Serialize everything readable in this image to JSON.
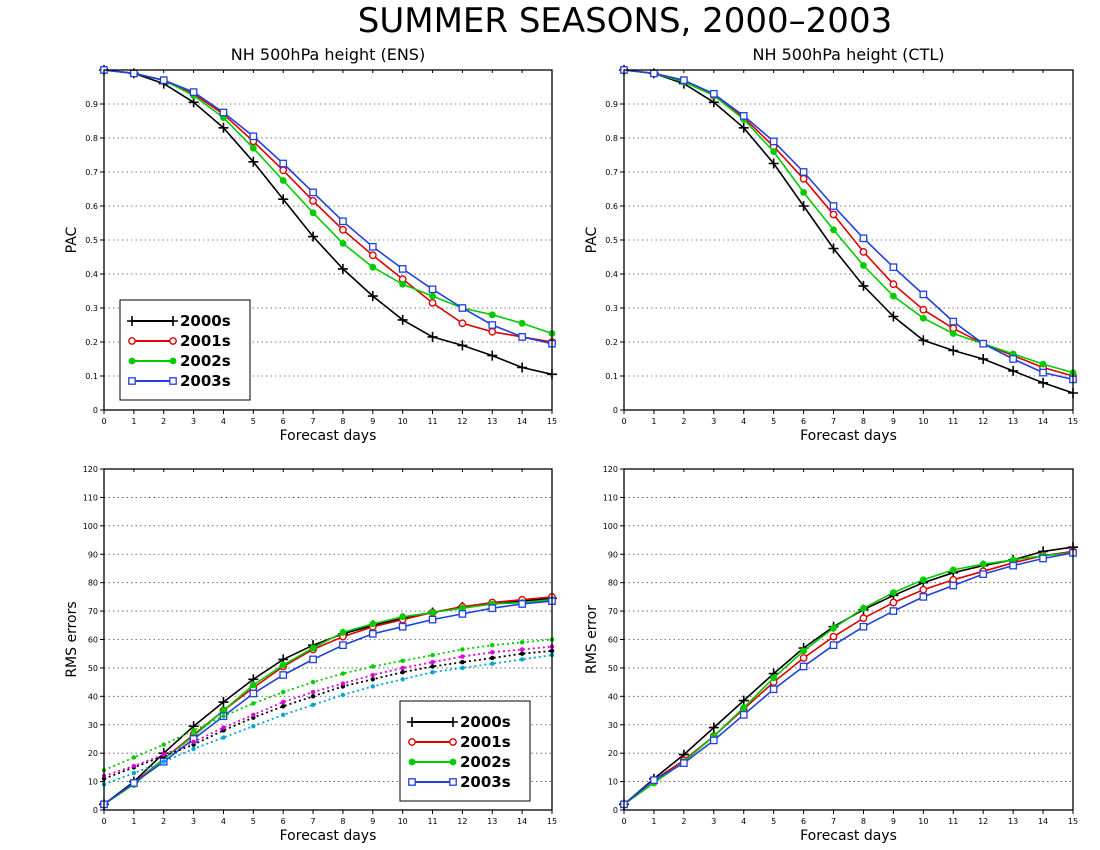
{
  "figure": {
    "title": "SUMMER SEASONS, 2000–2003"
  },
  "colors": {
    "2000s": "#000000",
    "2001s": "#e00000",
    "2002s": "#00cc00",
    "2003s": "#2040e0",
    "2000s_dotted": "#000000",
    "2001s_dotted": "#e000e0",
    "2002s_dotted": "#00cc00",
    "2003s_dotted": "#00a8d0"
  },
  "chart_data": [
    {
      "id": "pac-ens",
      "type": "line",
      "title": "NH 500hPa height (ENS)",
      "xlabel": "Forecast days",
      "ylabel": "PAC",
      "x": [
        0,
        1,
        2,
        3,
        4,
        5,
        6,
        7,
        8,
        9,
        10,
        11,
        12,
        13,
        14,
        15
      ],
      "xlim": [
        0,
        15
      ],
      "ylim": [
        0,
        1
      ],
      "yticks": [
        0,
        0.1,
        0.2,
        0.3,
        0.4,
        0.5,
        0.6,
        0.7,
        0.8,
        0.9
      ],
      "ytick_labels": [
        "0",
        "0.1",
        "0.2",
        "0.3",
        "0.4",
        "0.5",
        "0.6",
        "0.7",
        "0.8",
        "0.9"
      ],
      "grid": "horizontal dotted",
      "legend": "lower-left",
      "series": [
        {
          "name": "2000s",
          "marker": "plus",
          "values": [
            1.0,
            0.99,
            0.96,
            0.905,
            0.83,
            0.73,
            0.62,
            0.51,
            0.415,
            0.335,
            0.265,
            0.215,
            0.19,
            0.16,
            0.125,
            0.105
          ]
        },
        {
          "name": "2001s",
          "marker": "circle",
          "values": [
            1.0,
            0.99,
            0.97,
            0.93,
            0.87,
            0.79,
            0.705,
            0.615,
            0.53,
            0.455,
            0.385,
            0.315,
            0.255,
            0.23,
            0.215,
            0.2
          ]
        },
        {
          "name": "2002s",
          "marker": "dot",
          "values": [
            1.0,
            0.99,
            0.97,
            0.925,
            0.86,
            0.77,
            0.675,
            0.58,
            0.49,
            0.42,
            0.37,
            0.335,
            0.3,
            0.28,
            0.255,
            0.225
          ]
        },
        {
          "name": "2003s",
          "marker": "square",
          "values": [
            1.0,
            0.99,
            0.97,
            0.935,
            0.875,
            0.805,
            0.725,
            0.64,
            0.555,
            0.48,
            0.415,
            0.355,
            0.3,
            0.25,
            0.215,
            0.195
          ]
        }
      ]
    },
    {
      "id": "pac-ctl",
      "type": "line",
      "title": "NH 500hPa height (CTL)",
      "xlabel": "Forecast days",
      "ylabel": "PAC",
      "x": [
        0,
        1,
        2,
        3,
        4,
        5,
        6,
        7,
        8,
        9,
        10,
        11,
        12,
        13,
        14,
        15
      ],
      "xlim": [
        0,
        15
      ],
      "ylim": [
        0,
        1
      ],
      "yticks": [
        0,
        0.1,
        0.2,
        0.3,
        0.4,
        0.5,
        0.6,
        0.7,
        0.8,
        0.9
      ],
      "ytick_labels": [
        "0",
        "0.1",
        "0.2",
        "0.3",
        "0.4",
        "0.5",
        "0.6",
        "0.7",
        "0.8",
        "0.9"
      ],
      "grid": "horizontal dotted",
      "series": [
        {
          "name": "2000s",
          "marker": "plus",
          "values": [
            1.0,
            0.99,
            0.96,
            0.905,
            0.83,
            0.725,
            0.6,
            0.475,
            0.365,
            0.275,
            0.205,
            0.175,
            0.15,
            0.115,
            0.08,
            0.05
          ]
        },
        {
          "name": "2001s",
          "marker": "circle",
          "values": [
            1.0,
            0.99,
            0.97,
            0.925,
            0.86,
            0.775,
            0.68,
            0.575,
            0.465,
            0.37,
            0.295,
            0.24,
            0.195,
            0.16,
            0.125,
            0.1
          ]
        },
        {
          "name": "2002s",
          "marker": "dot",
          "values": [
            1.0,
            0.99,
            0.965,
            0.925,
            0.855,
            0.76,
            0.64,
            0.53,
            0.425,
            0.335,
            0.27,
            0.225,
            0.195,
            0.165,
            0.135,
            0.11
          ]
        },
        {
          "name": "2003s",
          "marker": "square",
          "values": [
            1.0,
            0.99,
            0.97,
            0.93,
            0.865,
            0.79,
            0.7,
            0.6,
            0.505,
            0.42,
            0.34,
            0.26,
            0.195,
            0.15,
            0.11,
            0.09
          ]
        }
      ]
    },
    {
      "id": "rms-ens",
      "type": "line",
      "xlabel": "Forecast days",
      "ylabel": "RMS errors",
      "x": [
        0,
        1,
        2,
        3,
        4,
        5,
        6,
        7,
        8,
        9,
        10,
        11,
        12,
        13,
        14,
        15
      ],
      "xlim": [
        0,
        15
      ],
      "ylim": [
        0,
        120
      ],
      "yticks": [
        0,
        10,
        20,
        30,
        40,
        50,
        60,
        70,
        80,
        90,
        100,
        110,
        120
      ],
      "ytick_labels": [
        "0",
        "10",
        "20",
        "30",
        "40",
        "50",
        "60",
        "70",
        "80",
        "90",
        "100",
        "110",
        "120"
      ],
      "grid": "horizontal dotted",
      "legend": "lower-right",
      "series": [
        {
          "name": "2000s",
          "marker": "plus",
          "values": [
            2,
            10,
            20,
            29.5,
            38,
            46,
            53,
            58,
            62,
            65,
            67.5,
            69.5,
            71.5,
            72.5,
            73.5,
            74.5
          ]
        },
        {
          "name": "2001s",
          "marker": "circle",
          "values": [
            2,
            9.5,
            18,
            26.5,
            35,
            43,
            50.5,
            56.5,
            61,
            64.5,
            67,
            69.5,
            71.5,
            73,
            74,
            75
          ]
        },
        {
          "name": "2002s",
          "marker": "dot",
          "values": [
            2,
            9,
            18,
            26,
            35,
            44,
            51,
            57,
            62.5,
            65.5,
            68,
            69.5,
            71,
            72.5,
            73,
            74
          ]
        },
        {
          "name": "2003s",
          "marker": "square",
          "values": [
            2,
            9.5,
            17,
            25,
            33,
            41,
            47.5,
            53,
            58,
            62,
            64.5,
            67,
            69,
            71,
            72.5,
            73.5
          ]
        },
        {
          "name": "",
          "style": "dotted",
          "color_key": "2000s_dotted",
          "values": [
            11,
            15,
            19,
            23,
            28,
            32.5,
            36.5,
            40,
            43.5,
            46,
            48.5,
            50.5,
            52,
            53.5,
            55,
            56
          ]
        },
        {
          "name": "",
          "style": "dotted",
          "color_key": "2001s_dotted",
          "values": [
            12,
            15.5,
            19.5,
            24,
            29,
            33.5,
            38,
            41.5,
            44.5,
            47.5,
            50,
            52,
            54,
            55.5,
            56.5,
            57.5
          ]
        },
        {
          "name": "",
          "style": "dotted",
          "color_key": "2002s_dotted",
          "values": [
            14,
            18.5,
            23,
            28,
            33,
            37.5,
            41.5,
            45,
            48,
            50.5,
            52.5,
            54.5,
            56.5,
            58,
            59,
            60
          ]
        },
        {
          "name": "",
          "style": "dotted",
          "color_key": "2003s_dotted",
          "values": [
            9,
            13,
            17,
            21.5,
            25.5,
            29.5,
            33.5,
            37,
            40.5,
            43.5,
            46,
            48.5,
            50,
            51.5,
            53,
            54.5
          ]
        }
      ]
    },
    {
      "id": "rms-ctl",
      "type": "line",
      "xlabel": "Forecast days",
      "ylabel": "RMS error",
      "x": [
        0,
        1,
        2,
        3,
        4,
        5,
        6,
        7,
        8,
        9,
        10,
        11,
        12,
        13,
        14,
        15
      ],
      "xlim": [
        0,
        15
      ],
      "ylim": [
        0,
        120
      ],
      "yticks": [
        0,
        10,
        20,
        30,
        40,
        50,
        60,
        70,
        80,
        90,
        100,
        110,
        120
      ],
      "ytick_labels": [
        "0",
        "10",
        "20",
        "30",
        "40",
        "50",
        "60",
        "70",
        "80",
        "90",
        "100",
        "110",
        "120"
      ],
      "grid": "horizontal dotted",
      "series": [
        {
          "name": "2000s",
          "marker": "plus",
          "values": [
            2,
            11,
            19.5,
            29,
            38.5,
            48,
            57,
            64.5,
            70.5,
            75.5,
            80,
            83.5,
            86,
            88,
            91,
            92.5
          ]
        },
        {
          "name": "2001s",
          "marker": "circle",
          "values": [
            2,
            10.5,
            17.5,
            26,
            35.5,
            45,
            53.5,
            61,
            67.5,
            73,
            77.5,
            81,
            84,
            87,
            89.5,
            91
          ]
        },
        {
          "name": "2002s",
          "marker": "dot",
          "values": [
            2,
            9.5,
            17,
            26,
            36,
            46.5,
            56,
            64,
            71,
            76.5,
            81,
            84.5,
            86.5,
            88,
            89.5,
            90.5
          ]
        },
        {
          "name": "2003s",
          "marker": "square",
          "values": [
            2,
            10.5,
            16.5,
            24.5,
            33.5,
            42.5,
            50.5,
            58,
            64.5,
            70,
            75,
            79,
            83,
            86,
            88.5,
            90.5
          ]
        }
      ]
    }
  ]
}
